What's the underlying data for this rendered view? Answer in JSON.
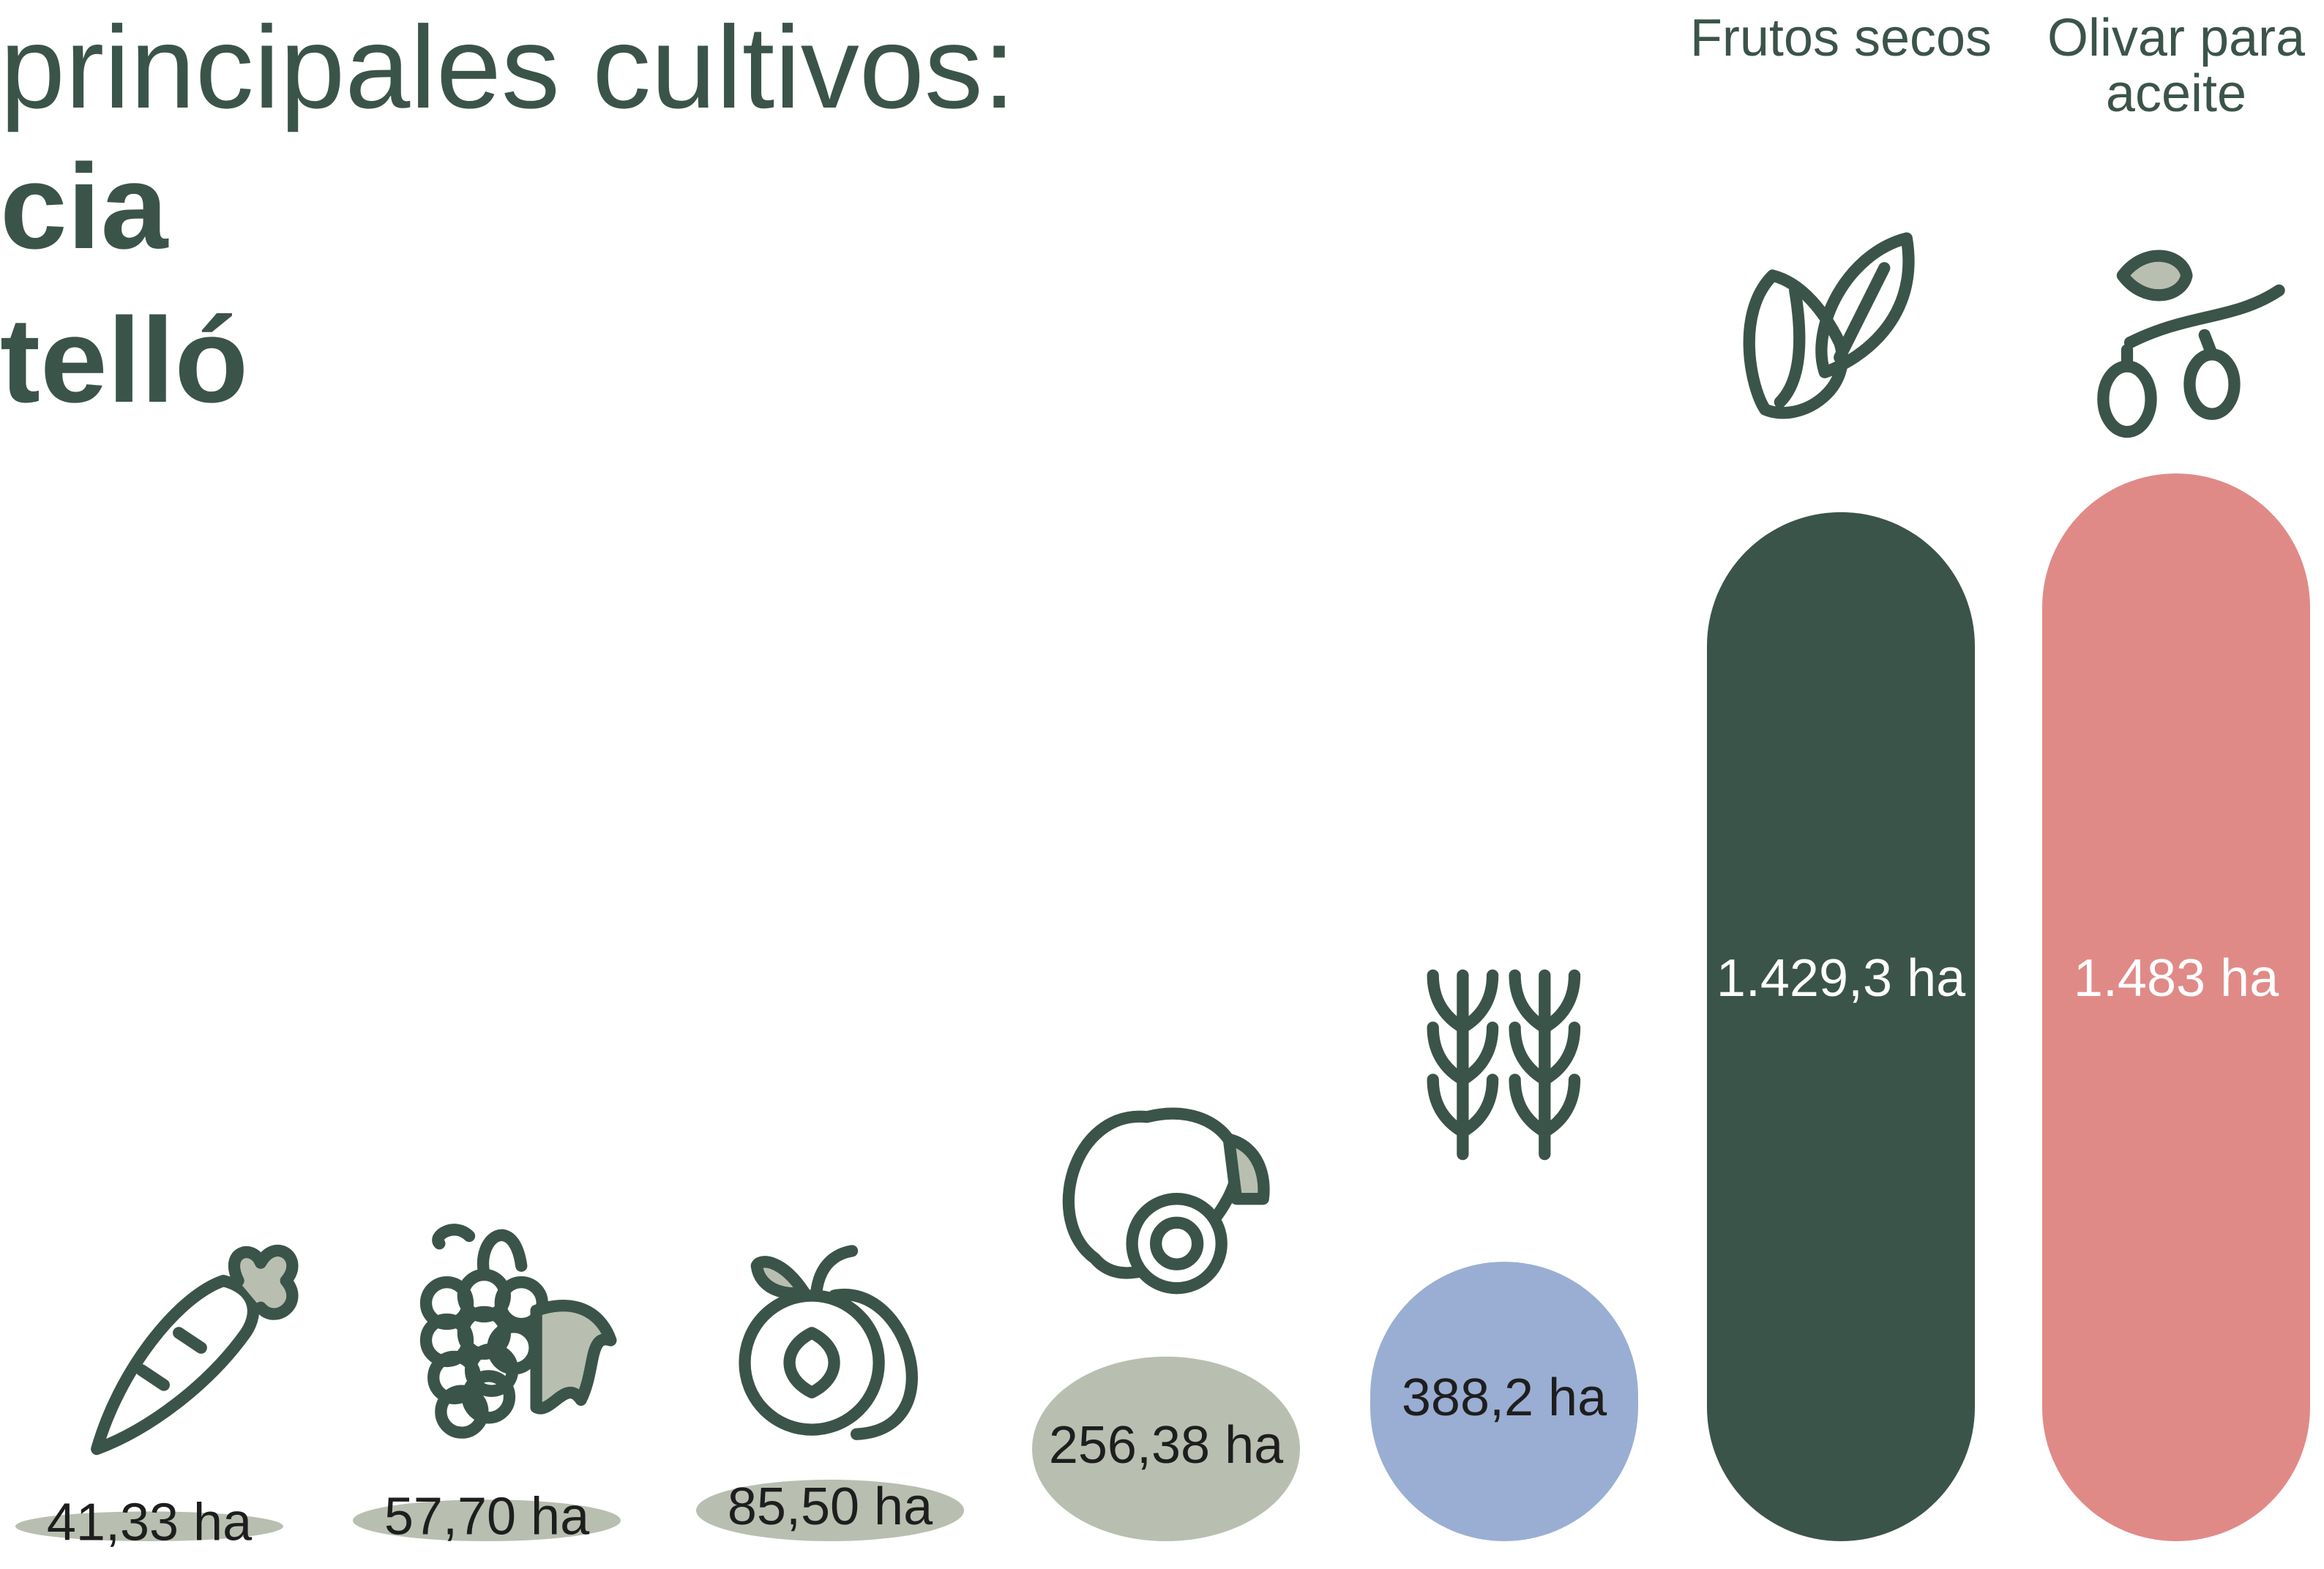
{
  "chart_data": {
    "type": "bar",
    "title_lines": [
      "principales cultivos:",
      "cia",
      "telló"
    ],
    "categories": [
      null,
      null,
      null,
      null,
      null,
      "Frutos secos",
      "Olivar para aceite"
    ],
    "values": [
      41.33,
      57.7,
      85.5,
      256.38,
      388.2,
      1429.3,
      1483
    ],
    "value_labels": [
      "41,33 ha",
      "57,70 ha",
      "85,50 ha",
      "256,38 ha",
      "388,2 ha",
      "1.429,3 ha",
      "1.483 ha"
    ],
    "colors": [
      "#b8bfb0",
      "#b8bfb0",
      "#b8bfb0",
      "#b8bfb0",
      "#9aaed3",
      "#3b5449",
      "#e08a87"
    ]
  }
}
